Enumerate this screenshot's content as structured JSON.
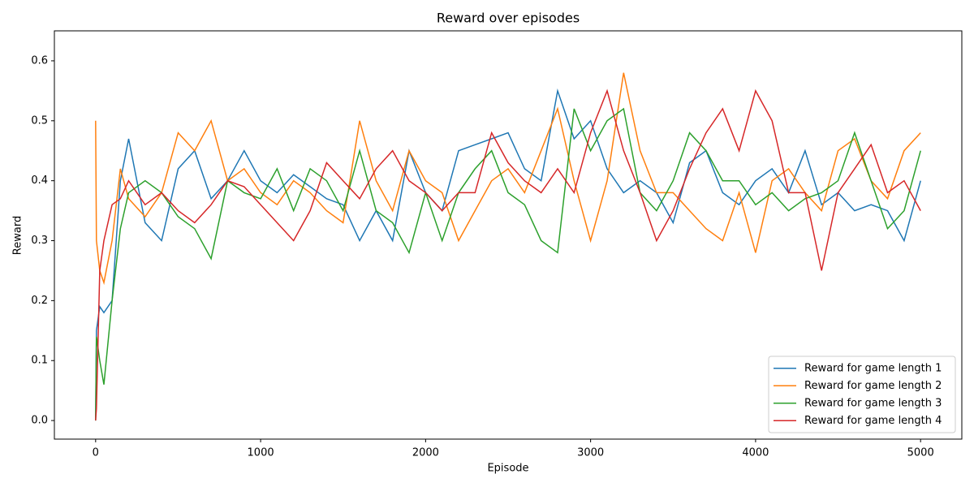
{
  "chart_data": {
    "type": "line",
    "title": "Reward over episodes",
    "x_label": "Episode",
    "y_label": "Reward",
    "x": [
      0,
      5,
      25,
      50,
      100,
      150,
      200,
      300,
      400,
      500,
      600,
      700,
      800,
      900,
      1000,
      1100,
      1200,
      1300,
      1400,
      1500,
      1600,
      1700,
      1800,
      1900,
      2000,
      2100,
      2200,
      2300,
      2400,
      2500,
      2600,
      2700,
      2800,
      2900,
      3000,
      3100,
      3200,
      3300,
      3400,
      3500,
      3600,
      3700,
      3800,
      3900,
      4000,
      4100,
      4200,
      4300,
      4400,
      4500,
      4600,
      4700,
      4800,
      4900,
      5000
    ],
    "series": [
      {
        "name": "Reward for game length 1",
        "color": "#1f77b4",
        "values": [
          0,
          0.15,
          0.19,
          0.18,
          0.2,
          0.4,
          0.47,
          0.33,
          0.3,
          0.42,
          0.45,
          0.37,
          0.4,
          0.45,
          0.4,
          0.38,
          0.41,
          0.39,
          0.37,
          0.36,
          0.3,
          0.35,
          0.3,
          0.45,
          0.38,
          0.35,
          0.45,
          0.46,
          0.47,
          0.48,
          0.42,
          0.4,
          0.55,
          0.47,
          0.5,
          0.42,
          0.38,
          0.4,
          0.38,
          0.33,
          0.43,
          0.45,
          0.38,
          0.36,
          0.4,
          0.42,
          0.38,
          0.45,
          0.36,
          0.38,
          0.35,
          0.36,
          0.35,
          0.3,
          0.4
        ]
      },
      {
        "name": "Reward for game length 2",
        "color": "#ff7f0e",
        "values": [
          0.5,
          0.3,
          0.25,
          0.23,
          0.3,
          0.42,
          0.37,
          0.34,
          0.38,
          0.48,
          0.45,
          0.5,
          0.4,
          0.42,
          0.38,
          0.36,
          0.4,
          0.38,
          0.35,
          0.33,
          0.5,
          0.4,
          0.35,
          0.45,
          0.4,
          0.38,
          0.3,
          0.35,
          0.4,
          0.42,
          0.38,
          0.45,
          0.52,
          0.4,
          0.3,
          0.4,
          0.58,
          0.45,
          0.38,
          0.38,
          0.35,
          0.32,
          0.3,
          0.38,
          0.28,
          0.4,
          0.42,
          0.38,
          0.35,
          0.45,
          0.47,
          0.4,
          0.37,
          0.45,
          0.48
        ]
      },
      {
        "name": "Reward for game length 3",
        "color": "#2ca02c",
        "values": [
          0,
          0.14,
          0.1,
          0.06,
          0.2,
          0.32,
          0.38,
          0.4,
          0.38,
          0.34,
          0.32,
          0.27,
          0.4,
          0.38,
          0.37,
          0.42,
          0.35,
          0.42,
          0.4,
          0.35,
          0.45,
          0.35,
          0.33,
          0.28,
          0.38,
          0.3,
          0.38,
          0.42,
          0.45,
          0.38,
          0.36,
          0.3,
          0.28,
          0.52,
          0.45,
          0.5,
          0.52,
          0.38,
          0.35,
          0.4,
          0.48,
          0.45,
          0.4,
          0.4,
          0.36,
          0.38,
          0.35,
          0.37,
          0.38,
          0.4,
          0.48,
          0.4,
          0.32,
          0.35,
          0.45
        ]
      },
      {
        "name": "Reward for game length 4",
        "color": "#d62728",
        "values": [
          0,
          0.02,
          0.25,
          0.3,
          0.36,
          0.37,
          0.4,
          0.36,
          0.38,
          0.35,
          0.33,
          0.36,
          0.4,
          0.39,
          0.36,
          0.33,
          0.3,
          0.35,
          0.43,
          0.4,
          0.37,
          0.42,
          0.45,
          0.4,
          0.38,
          0.35,
          0.38,
          0.38,
          0.48,
          0.43,
          0.4,
          0.38,
          0.42,
          0.38,
          0.48,
          0.55,
          0.45,
          0.38,
          0.3,
          0.35,
          0.42,
          0.48,
          0.52,
          0.45,
          0.55,
          0.5,
          0.38,
          0.38,
          0.25,
          0.38,
          0.42,
          0.46,
          0.38,
          0.4,
          0.35
        ]
      }
    ],
    "xlim": [
      -250,
      5250
    ],
    "xticks": [
      0,
      1000,
      2000,
      3000,
      4000,
      5000
    ],
    "ylim": [
      -0.031,
      0.65
    ],
    "yticks": [
      {
        "value": 0,
        "label": "0.0"
      },
      0.1,
      0.2,
      0.3,
      0.4,
      0.5,
      0.6
    ],
    "legend": "lower right"
  }
}
